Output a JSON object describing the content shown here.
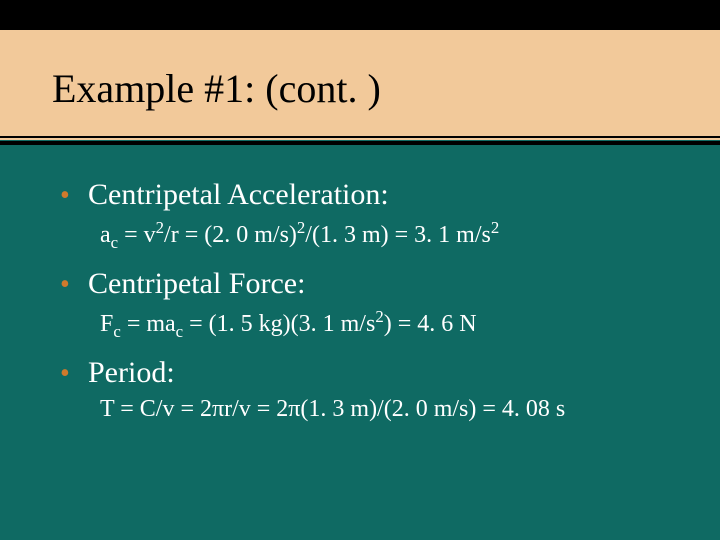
{
  "colors": {
    "background_teal": "#0f6a63",
    "tan": "#f2c99a",
    "title_color": "#000000",
    "bullet_color": "#cf7a2c",
    "body_text": "#ffffff",
    "black_bar": "#000000"
  },
  "title": "Example #1: (cont. )",
  "items": [
    {
      "heading": "Centripetal Acceleration:",
      "formula_html": "a<sub>c</sub> = v<sup>2</sup>/r = (2. 0 m/s)<sup>2</sup>/(1. 3 m) = 3. 1 m/s<sup>2</sup>"
    },
    {
      "heading": "Centripetal Force:",
      "formula_html": "F<sub>c</sub> = ma<sub>c</sub> = (1. 5 kg)(3. 1 m/s<sup>2</sup>) = 4. 6 N"
    },
    {
      "heading": "Period:",
      "formula_html": "T = C/v = 2πr/v = 2π(1. 3 m)/(2. 0 m/s) = 4. 08 s"
    }
  ]
}
